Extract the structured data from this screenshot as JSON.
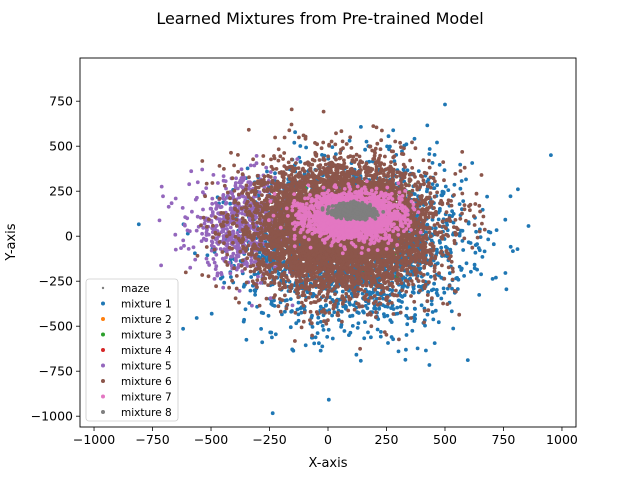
{
  "chart_data": {
    "type": "scatter",
    "title": "Learned Mixtures from Pre-trained Model",
    "xlabel": "X-axis",
    "ylabel": "Y-axis",
    "xlim": [
      -1060,
      1060
    ],
    "ylim": [
      -1060,
      990
    ],
    "xticks": [
      -1000,
      -750,
      -500,
      -250,
      0,
      250,
      500,
      750,
      1000
    ],
    "yticks": [
      -1000,
      -750,
      -500,
      -250,
      0,
      250,
      500,
      750
    ],
    "xtick_labels": [
      "−1000",
      "−750",
      "−500",
      "−250",
      "0",
      "250",
      "500",
      "750",
      "1000"
    ],
    "ytick_labels": [
      "−1000",
      "−750",
      "−500",
      "−250",
      "0",
      "250",
      "500",
      "750"
    ],
    "grid": false,
    "legend_position": "lower-left",
    "series": [
      {
        "name": "maze",
        "color": "#7f7f7f",
        "center": [
          0,
          0
        ],
        "spread": [
          0,
          0
        ],
        "count": 0
      },
      {
        "name": "mixture 1",
        "color": "#1f77b4",
        "center": [
          120,
          -40
        ],
        "spread": [
          460,
          450
        ],
        "count": 2400
      },
      {
        "name": "mixture 2",
        "color": "#ff7f0e",
        "center": [
          0,
          0
        ],
        "spread": [
          0,
          0
        ],
        "count": 0
      },
      {
        "name": "mixture 3",
        "color": "#2ca02c",
        "center": [
          250,
          0
        ],
        "spread": [
          320,
          340
        ],
        "count": 12
      },
      {
        "name": "mixture 4",
        "color": "#d62728",
        "center": [
          0,
          0
        ],
        "spread": [
          0,
          0
        ],
        "count": 0
      },
      {
        "name": "mixture 5",
        "color": "#9467bd",
        "center": [
          -350,
          60
        ],
        "spread": [
          240,
          260
        ],
        "count": 700
      },
      {
        "name": "mixture 6",
        "color": "#8c564b",
        "center": [
          60,
          50
        ],
        "spread": [
          370,
          340
        ],
        "count": 7000
      },
      {
        "name": "mixture 7",
        "color": "#e377c2",
        "center": [
          100,
          110
        ],
        "spread": [
          190,
          120
        ],
        "count": 2600
      },
      {
        "name": "mixture 8",
        "color": "#7f7f7f",
        "center": [
          110,
          140
        ],
        "spread": [
          75,
          32
        ],
        "count": 1300
      }
    ]
  }
}
